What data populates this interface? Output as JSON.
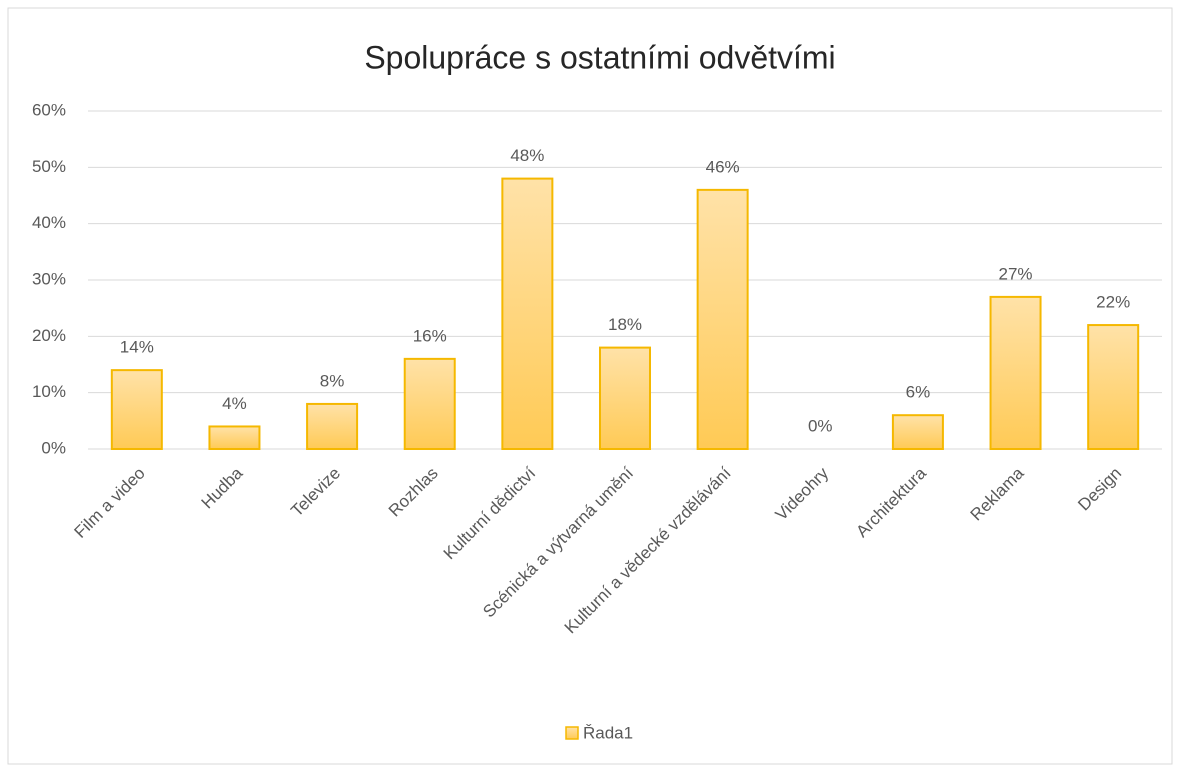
{
  "chart_data": {
    "type": "bar",
    "title": "Spolupráce s ostatními odvětvími",
    "categories": [
      "Film a video",
      "Hudba",
      "Televize",
      "Rozhlas",
      "Kulturní dědictví",
      "Scénická a výtvarná umění",
      "Kulturní a vědecké vzdělávání",
      "Videohry",
      "Architektura",
      "Reklama",
      "Design"
    ],
    "series": [
      {
        "name": "Řada1",
        "color": "#f5b800",
        "values": [
          14,
          4,
          8,
          16,
          48,
          18,
          46,
          0,
          6,
          27,
          22
        ],
        "value_labels": [
          "14%",
          "4%",
          "8%",
          "16%",
          "48%",
          "18%",
          "46%",
          "0%",
          "6%",
          "27%",
          "22%"
        ]
      }
    ],
    "ylim": [
      0,
      60
    ],
    "yticks": [
      {
        "value": 0,
        "label": "0%"
      },
      {
        "value": 10,
        "label": "10%"
      },
      {
        "value": 20,
        "label": "20%"
      },
      {
        "value": 30,
        "label": "30%"
      },
      {
        "value": 40,
        "label": "40%"
      },
      {
        "value": 50,
        "label": "50%"
      },
      {
        "value": 60,
        "label": "60%"
      }
    ],
    "grid": true,
    "legend": "bottom"
  }
}
